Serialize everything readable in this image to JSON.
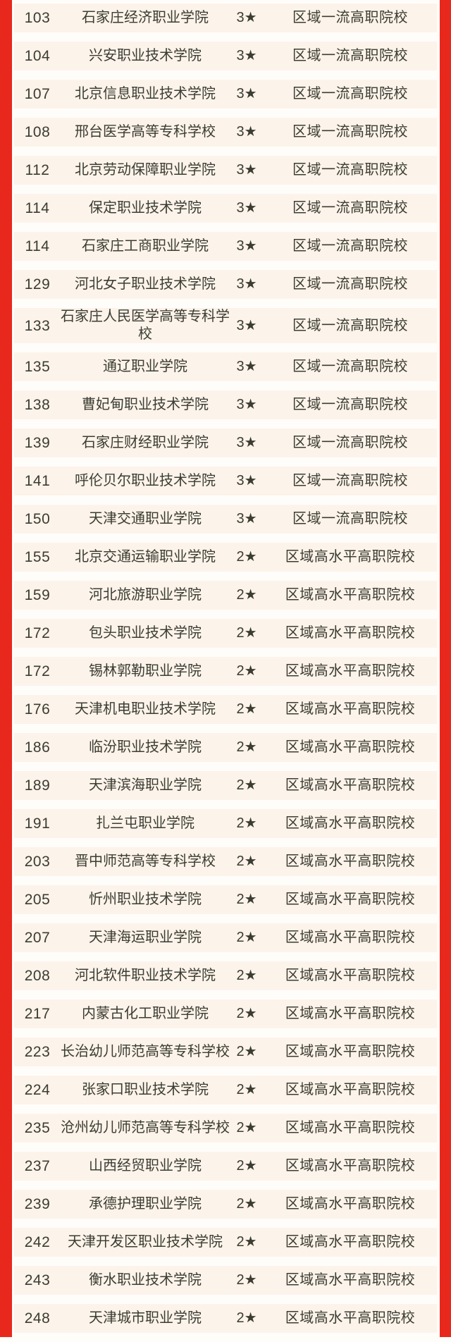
{
  "colors": {
    "accent_red": "#e8281c",
    "band_cream": "#fcf3ea",
    "gap_white": "#fffdfa",
    "text_ink": "#3b3c32"
  },
  "table": {
    "column_names": [
      "rank",
      "school-name",
      "star-rating",
      "category"
    ],
    "category_tier_3star": "区域一流高职院校",
    "category_tier_2star": "区域高水平高职院校",
    "rows": [
      {
        "rank": "103",
        "name": "石家庄经济职业学院",
        "stars": "3★",
        "category": "区域一流高职院校"
      },
      {
        "rank": "104",
        "name": "兴安职业技术学院",
        "stars": "3★",
        "category": "区域一流高职院校"
      },
      {
        "rank": "107",
        "name": "北京信息职业技术学院",
        "stars": "3★",
        "category": "区域一流高职院校"
      },
      {
        "rank": "108",
        "name": "邢台医学高等专科学校",
        "stars": "3★",
        "category": "区域一流高职院校"
      },
      {
        "rank": "112",
        "name": "北京劳动保障职业学院",
        "stars": "3★",
        "category": "区域一流高职院校"
      },
      {
        "rank": "114",
        "name": "保定职业技术学院",
        "stars": "3★",
        "category": "区域一流高职院校"
      },
      {
        "rank": "114",
        "name": "石家庄工商职业学院",
        "stars": "3★",
        "category": "区域一流高职院校"
      },
      {
        "rank": "129",
        "name": "河北女子职业技术学院",
        "stars": "3★",
        "category": "区域一流高职院校"
      },
      {
        "rank": "133",
        "name": "石家庄人民医学高等专科学校",
        "stars": "3★",
        "category": "区域一流高职院校"
      },
      {
        "rank": "135",
        "name": "通辽职业学院",
        "stars": "3★",
        "category": "区域一流高职院校"
      },
      {
        "rank": "138",
        "name": "曹妃甸职业技术学院",
        "stars": "3★",
        "category": "区域一流高职院校"
      },
      {
        "rank": "139",
        "name": "石家庄财经职业学院",
        "stars": "3★",
        "category": "区域一流高职院校"
      },
      {
        "rank": "141",
        "name": "呼伦贝尔职业技术学院",
        "stars": "3★",
        "category": "区域一流高职院校"
      },
      {
        "rank": "150",
        "name": "天津交通职业学院",
        "stars": "3★",
        "category": "区域一流高职院校"
      },
      {
        "rank": "155",
        "name": "北京交通运输职业学院",
        "stars": "2★",
        "category": "区域高水平高职院校"
      },
      {
        "rank": "159",
        "name": "河北旅游职业学院",
        "stars": "2★",
        "category": "区域高水平高职院校"
      },
      {
        "rank": "172",
        "name": "包头职业技术学院",
        "stars": "2★",
        "category": "区域高水平高职院校"
      },
      {
        "rank": "172",
        "name": "锡林郭勒职业学院",
        "stars": "2★",
        "category": "区域高水平高职院校"
      },
      {
        "rank": "176",
        "name": "天津机电职业技术学院",
        "stars": "2★",
        "category": "区域高水平高职院校"
      },
      {
        "rank": "186",
        "name": "临汾职业技术学院",
        "stars": "2★",
        "category": "区域高水平高职院校"
      },
      {
        "rank": "189",
        "name": "天津滨海职业学院",
        "stars": "2★",
        "category": "区域高水平高职院校"
      },
      {
        "rank": "191",
        "name": "扎兰屯职业学院",
        "stars": "2★",
        "category": "区域高水平高职院校"
      },
      {
        "rank": "203",
        "name": "晋中师范高等专科学校",
        "stars": "2★",
        "category": "区域高水平高职院校"
      },
      {
        "rank": "205",
        "name": "忻州职业技术学院",
        "stars": "2★",
        "category": "区域高水平高职院校"
      },
      {
        "rank": "207",
        "name": "天津海运职业学院",
        "stars": "2★",
        "category": "区域高水平高职院校"
      },
      {
        "rank": "208",
        "name": "河北软件职业技术学院",
        "stars": "2★",
        "category": "区域高水平高职院校"
      },
      {
        "rank": "217",
        "name": "内蒙古化工职业学院",
        "stars": "2★",
        "category": "区域高水平高职院校"
      },
      {
        "rank": "223",
        "name": "长治幼儿师范高等专科学校",
        "stars": "2★",
        "category": "区域高水平高职院校"
      },
      {
        "rank": "224",
        "name": "张家口职业技术学院",
        "stars": "2★",
        "category": "区域高水平高职院校"
      },
      {
        "rank": "235",
        "name": "沧州幼儿师范高等专科学校",
        "stars": "2★",
        "category": "区域高水平高职院校"
      },
      {
        "rank": "237",
        "name": "山西经贸职业学院",
        "stars": "2★",
        "category": "区域高水平高职院校"
      },
      {
        "rank": "239",
        "name": "承德护理职业学院",
        "stars": "2★",
        "category": "区域高水平高职院校"
      },
      {
        "rank": "242",
        "name": "天津开发区职业技术学院",
        "stars": "2★",
        "category": "区域高水平高职院校"
      },
      {
        "rank": "243",
        "name": "衡水职业技术学院",
        "stars": "2★",
        "category": "区域高水平高职院校"
      },
      {
        "rank": "248",
        "name": "天津城市职业学院",
        "stars": "2★",
        "category": "区域高水平高职院校"
      }
    ]
  }
}
